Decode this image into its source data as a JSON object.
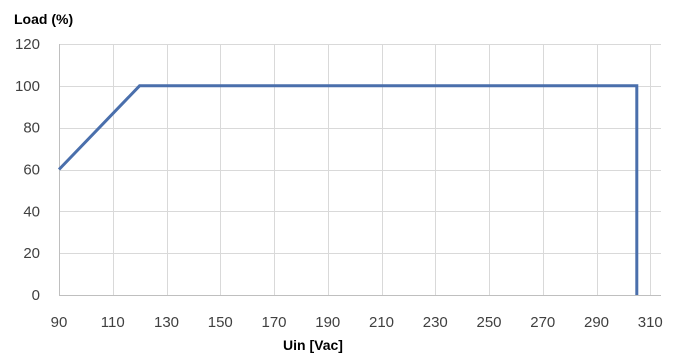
{
  "chart_data": {
    "type": "line",
    "title": "",
    "ylabel": "Load (%)",
    "xlabel": "Uin [Vac]",
    "xlim": [
      90,
      314
    ],
    "ylim": [
      0,
      120
    ],
    "x_ticks": [
      "90",
      "110",
      "130",
      "150",
      "170",
      "190",
      "210",
      "230",
      "250",
      "270",
      "290",
      "310"
    ],
    "y_ticks": [
      "0",
      "20",
      "40",
      "60",
      "80",
      "100",
      "120"
    ],
    "x_tick_values": [
      90,
      110,
      130,
      150,
      170,
      190,
      210,
      230,
      250,
      270,
      290,
      310
    ],
    "y_tick_values": [
      0,
      20,
      40,
      60,
      80,
      100,
      120
    ],
    "grid": true,
    "legend": "none",
    "series": [
      {
        "color": "#4a6fac",
        "points": [
          {
            "x": 90,
            "y": 60
          },
          {
            "x": 120,
            "y": 100
          },
          {
            "x": 305,
            "y": 100
          },
          {
            "x": 305,
            "y": 0
          }
        ]
      }
    ]
  }
}
